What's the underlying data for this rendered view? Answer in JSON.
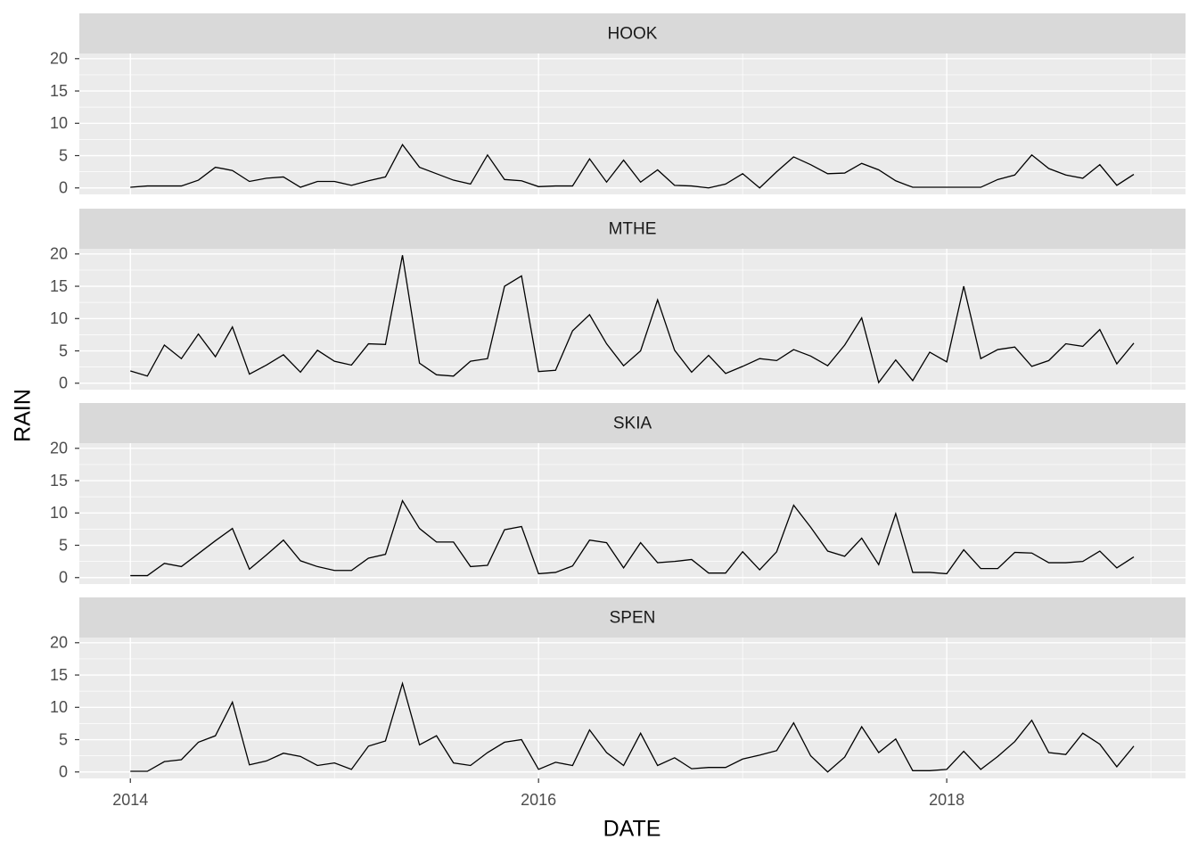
{
  "xlabel": "DATE",
  "ylabel": "RAIN",
  "chart_data": [
    {
      "type": "line",
      "title": "HOOK",
      "color": "#000000",
      "x": [
        "2014-01",
        "2014-02",
        "2014-03",
        "2014-04",
        "2014-05",
        "2014-06",
        "2014-07",
        "2014-08",
        "2014-09",
        "2014-10",
        "2014-11",
        "2014-12",
        "2015-01",
        "2015-02",
        "2015-03",
        "2015-04",
        "2015-05",
        "2015-06",
        "2015-07",
        "2015-08",
        "2015-09",
        "2015-10",
        "2015-11",
        "2015-12",
        "2016-01",
        "2016-02",
        "2016-03",
        "2016-04",
        "2016-05",
        "2016-06",
        "2016-07",
        "2016-08",
        "2016-09",
        "2016-10",
        "2016-11",
        "2016-12",
        "2017-01",
        "2017-02",
        "2017-03",
        "2017-04",
        "2017-05",
        "2017-06",
        "2017-07",
        "2017-08",
        "2017-09",
        "2017-10",
        "2017-11",
        "2017-12",
        "2018-01",
        "2018-02",
        "2018-03",
        "2018-04",
        "2018-05",
        "2018-06",
        "2018-07",
        "2018-08",
        "2018-09",
        "2018-10",
        "2018-11",
        "2018-12"
      ],
      "values": [
        0.1,
        0.3,
        0.3,
        0.3,
        1.2,
        3.2,
        2.7,
        1.0,
        1.5,
        1.7,
        0.1,
        1.0,
        1.0,
        0.4,
        1.1,
        1.7,
        6.7,
        3.2,
        2.2,
        1.2,
        0.6,
        5.1,
        1.3,
        1.1,
        0.2,
        0.3,
        0.3,
        4.5,
        0.9,
        4.3,
        0.9,
        2.8,
        0.4,
        0.3,
        0,
        0.6,
        2.2,
        0,
        2.5,
        4.8,
        3.6,
        2.2,
        2.3,
        3.8,
        2.8,
        1.1,
        0.1,
        0.1,
        0.1,
        0.1,
        0.1,
        1.3,
        2.0,
        5.1,
        3.0,
        2.0,
        1.5,
        3.6,
        0.4,
        2.1
      ],
      "xlim": [
        2013.75,
        2019.17
      ],
      "xticks": [
        2014,
        2016,
        2018
      ],
      "ylim": [
        -1,
        20.8
      ],
      "yticks": [
        0,
        5,
        10,
        15,
        20
      ],
      "grid": true
    },
    {
      "type": "line",
      "title": "MTHE",
      "color": "#000000",
      "x": [
        "2014-01",
        "2014-02",
        "2014-03",
        "2014-04",
        "2014-05",
        "2014-06",
        "2014-07",
        "2014-08",
        "2014-09",
        "2014-10",
        "2014-11",
        "2014-12",
        "2015-01",
        "2015-02",
        "2015-03",
        "2015-04",
        "2015-05",
        "2015-06",
        "2015-07",
        "2015-08",
        "2015-09",
        "2015-10",
        "2015-11",
        "2015-12",
        "2016-01",
        "2016-02",
        "2016-03",
        "2016-04",
        "2016-05",
        "2016-06",
        "2016-07",
        "2016-08",
        "2016-09",
        "2016-10",
        "2016-11",
        "2016-12",
        "2017-01",
        "2017-02",
        "2017-03",
        "2017-04",
        "2017-05",
        "2017-06",
        "2017-07",
        "2017-08",
        "2017-09",
        "2017-10",
        "2017-11",
        "2017-12",
        "2018-01",
        "2018-02",
        "2018-03",
        "2018-04",
        "2018-05",
        "2018-06",
        "2018-07",
        "2018-08",
        "2018-09",
        "2018-10",
        "2018-11",
        "2018-12"
      ],
      "values": [
        1.9,
        1.1,
        5.9,
        3.8,
        7.6,
        4.1,
        8.7,
        1.4,
        2.8,
        4.4,
        1.7,
        5.1,
        3.4,
        2.8,
        6.1,
        6.0,
        19.8,
        3.1,
        1.3,
        1.1,
        3.4,
        3.8,
        15.0,
        16.6,
        1.8,
        2.0,
        8.1,
        10.6,
        6.1,
        2.7,
        5.0,
        12.9,
        5.1,
        1.7,
        4.3,
        1.5,
        2.6,
        3.8,
        3.5,
        5.2,
        4.2,
        2.7,
        5.9,
        10.1,
        0.1,
        3.6,
        0.4,
        4.8,
        3.3,
        15.0,
        3.8,
        5.2,
        5.6,
        2.6,
        3.5,
        6.1,
        5.7,
        8.3,
        3.0,
        6.2
      ],
      "xlim": [
        2013.75,
        2019.17
      ],
      "xticks": [
        2014,
        2016,
        2018
      ],
      "ylim": [
        -1,
        20.8
      ],
      "yticks": [
        0,
        5,
        10,
        15,
        20
      ],
      "grid": true
    },
    {
      "type": "line",
      "title": "SKIA",
      "color": "#000000",
      "x": [
        "2014-01",
        "2014-02",
        "2014-03",
        "2014-04",
        "2014-05",
        "2014-06",
        "2014-07",
        "2014-08",
        "2014-09",
        "2014-10",
        "2014-11",
        "2014-12",
        "2015-01",
        "2015-02",
        "2015-03",
        "2015-04",
        "2015-05",
        "2015-06",
        "2015-07",
        "2015-08",
        "2015-09",
        "2015-10",
        "2015-11",
        "2015-12",
        "2016-01",
        "2016-02",
        "2016-03",
        "2016-04",
        "2016-05",
        "2016-06",
        "2016-07",
        "2016-08",
        "2016-09",
        "2016-10",
        "2016-11",
        "2016-12",
        "2017-01",
        "2017-02",
        "2017-03",
        "2017-04",
        "2017-05",
        "2017-06",
        "2017-07",
        "2017-08",
        "2017-09",
        "2017-10",
        "2017-11",
        "2017-12",
        "2018-01",
        "2018-02",
        "2018-03",
        "2018-04",
        "2018-05",
        "2018-06",
        "2018-07",
        "2018-08",
        "2018-09",
        "2018-10",
        "2018-11",
        "2018-12"
      ],
      "values": [
        0.3,
        0.3,
        2.2,
        1.7,
        3.7,
        5.7,
        7.6,
        1.3,
        3.5,
        5.8,
        2.6,
        1.7,
        1.1,
        1.1,
        3.0,
        3.6,
        11.9,
        7.6,
        5.5,
        5.5,
        1.7,
        1.9,
        7.4,
        7.9,
        0.6,
        0.8,
        1.8,
        5.8,
        5.4,
        1.5,
        5.4,
        2.3,
        2.5,
        2.8,
        0.7,
        0.7,
        4.0,
        1.2,
        4.0,
        11.2,
        7.8,
        4.1,
        3.3,
        6.1,
        2.0,
        9.9,
        0.8,
        0.8,
        0.6,
        4.3,
        1.4,
        1.4,
        3.9,
        3.8,
        2.3,
        2.3,
        2.5,
        4.1,
        1.5,
        3.2
      ],
      "xlim": [
        2013.75,
        2019.17
      ],
      "xticks": [
        2014,
        2016,
        2018
      ],
      "ylim": [
        -1,
        20.8
      ],
      "yticks": [
        0,
        5,
        10,
        15,
        20
      ],
      "grid": true
    },
    {
      "type": "line",
      "title": "SPEN",
      "color": "#000000",
      "x": [
        "2014-01",
        "2014-02",
        "2014-03",
        "2014-04",
        "2014-05",
        "2014-06",
        "2014-07",
        "2014-08",
        "2014-09",
        "2014-10",
        "2014-11",
        "2014-12",
        "2015-01",
        "2015-02",
        "2015-03",
        "2015-04",
        "2015-05",
        "2015-06",
        "2015-07",
        "2015-08",
        "2015-09",
        "2015-10",
        "2015-11",
        "2015-12",
        "2016-01",
        "2016-02",
        "2016-03",
        "2016-04",
        "2016-05",
        "2016-06",
        "2016-07",
        "2016-08",
        "2016-09",
        "2016-10",
        "2016-11",
        "2016-12",
        "2017-01",
        "2017-02",
        "2017-03",
        "2017-04",
        "2017-05",
        "2017-06",
        "2017-07",
        "2017-08",
        "2017-09",
        "2017-10",
        "2017-11",
        "2017-12",
        "2018-01",
        "2018-02",
        "2018-03",
        "2018-04",
        "2018-05",
        "2018-06",
        "2018-07",
        "2018-08",
        "2018-09",
        "2018-10",
        "2018-11",
        "2018-12"
      ],
      "values": [
        0.1,
        0.1,
        1.6,
        1.9,
        4.6,
        5.6,
        10.8,
        1.1,
        1.7,
        2.9,
        2.4,
        1.0,
        1.4,
        0.4,
        4.0,
        4.8,
        13.7,
        4.2,
        5.6,
        1.4,
        1.0,
        3.0,
        4.6,
        5.0,
        0.4,
        1.5,
        1.0,
        6.5,
        3.0,
        1.0,
        6.0,
        1.0,
        2.2,
        0.5,
        0.7,
        0.7,
        2.0,
        2.6,
        3.3,
        7.6,
        2.5,
        0,
        2.3,
        7.0,
        3.0,
        5.1,
        0.2,
        0.2,
        0.4,
        3.2,
        0.4,
        2.4,
        4.7,
        8.0,
        3.0,
        2.7,
        6.0,
        4.3,
        0.8,
        4.0
      ],
      "xlim": [
        2013.75,
        2019.17
      ],
      "xticks": [
        2014,
        2016,
        2018
      ],
      "ylim": [
        -1,
        20.8
      ],
      "yticks": [
        0,
        5,
        10,
        15,
        20
      ],
      "grid": true
    }
  ]
}
